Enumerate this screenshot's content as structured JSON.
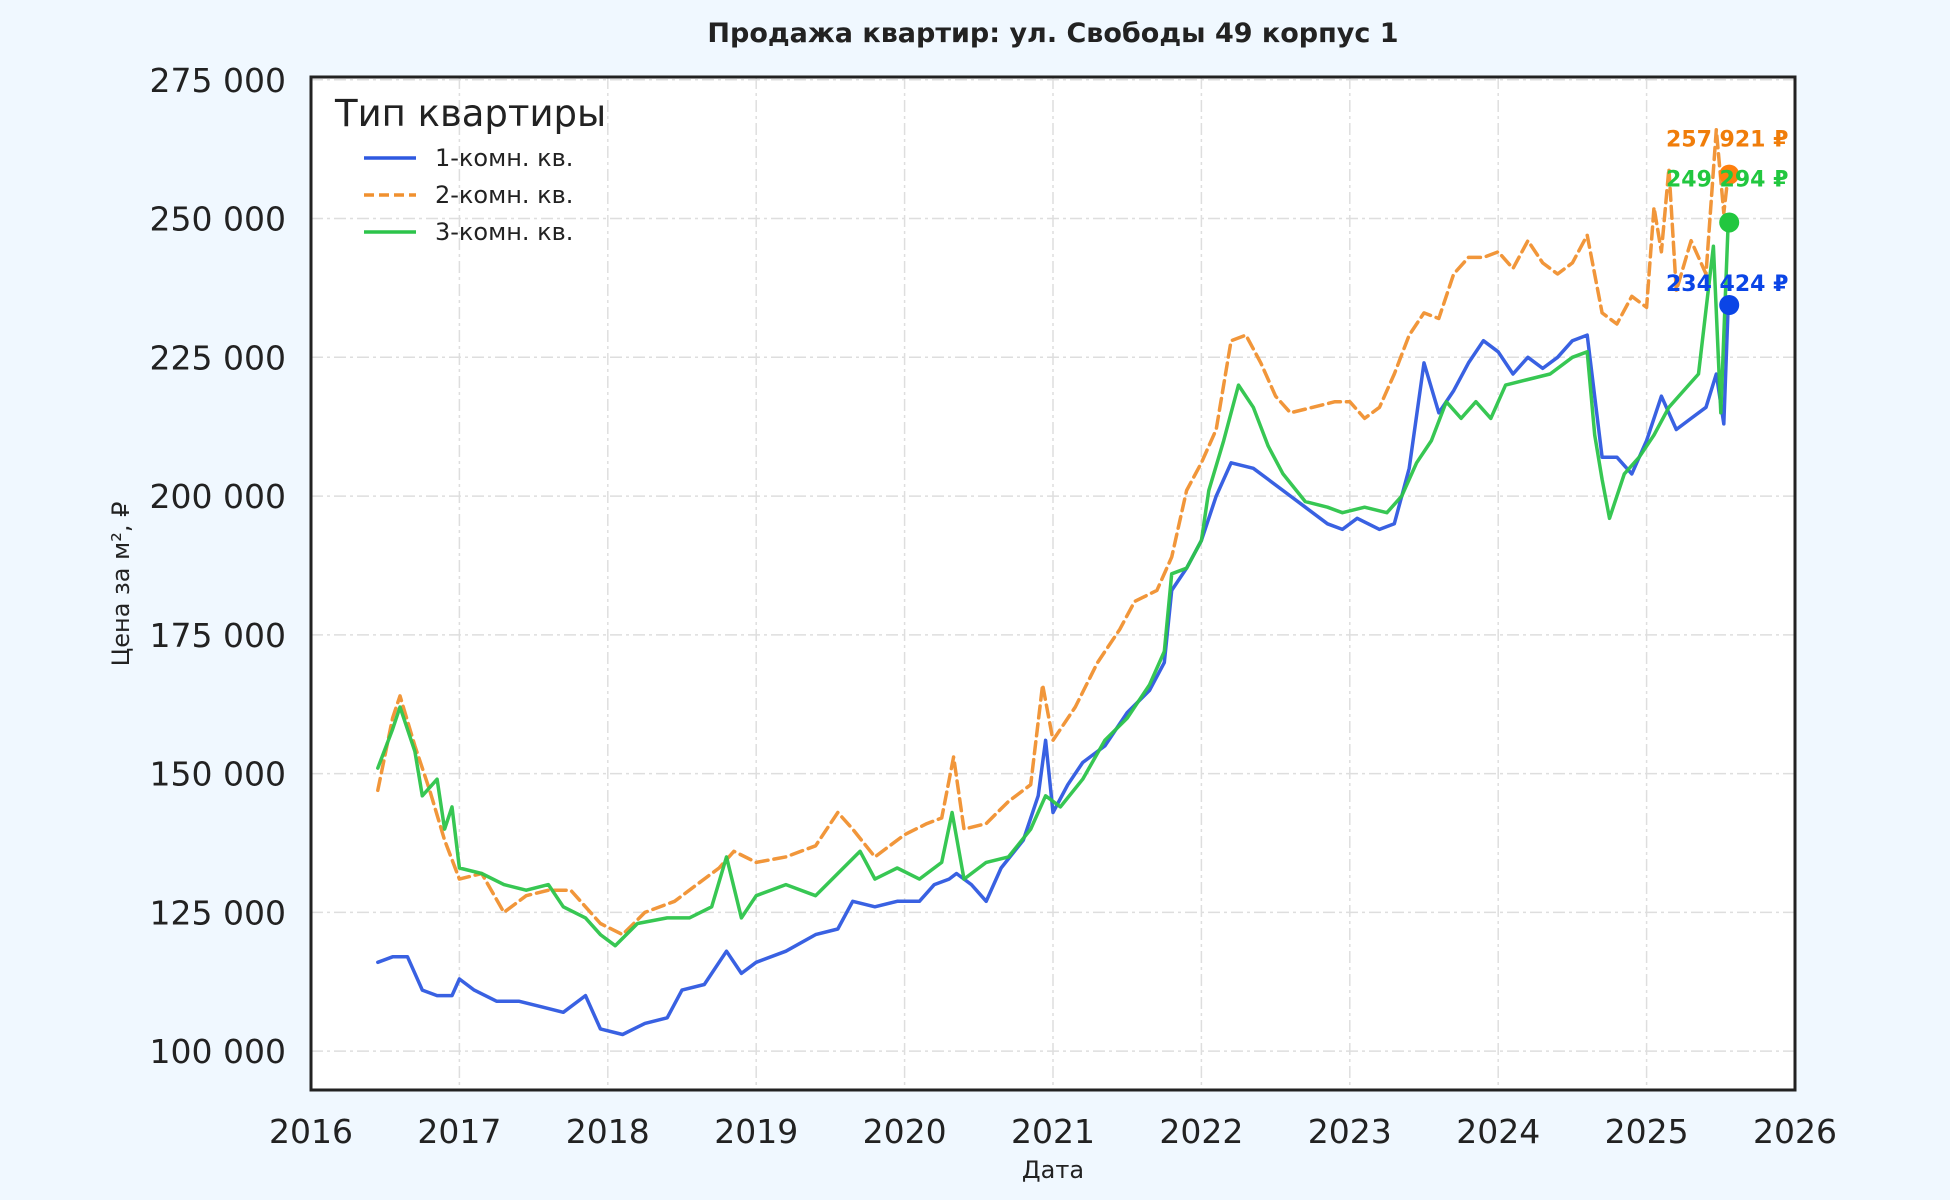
{
  "chart_data": {
    "type": "line",
    "title": "Продажа квартир: ул. Свободы 49 корпус 1",
    "xlabel": "Дата",
    "ylabel": "Цена за м², ₽",
    "xlim": [
      2016,
      2026
    ],
    "ylim": [
      93000,
      275500
    ],
    "x_ticks": [
      "2016",
      "2017",
      "2018",
      "2019",
      "2020",
      "2021",
      "2022",
      "2023",
      "2024",
      "2025",
      "2026"
    ],
    "y_ticks": [
      "100 000",
      "125 000",
      "150 000",
      "175 000",
      "200 000",
      "225 000",
      "250 000",
      "275 000"
    ],
    "grid": true,
    "legend": {
      "title": "Тип квартиры",
      "position": "top-left"
    },
    "series": [
      {
        "name": "1-комн. кв.",
        "color": "#2e59e0",
        "style": "solid",
        "end_label": "234 424 ₽",
        "end_marker_color": "#0b45e6",
        "label_color": "#0b45e6",
        "points": [
          [
            2016.45,
            116000
          ],
          [
            2016.55,
            117000
          ],
          [
            2016.65,
            117000
          ],
          [
            2016.75,
            111000
          ],
          [
            2016.85,
            110000
          ],
          [
            2016.95,
            110000
          ],
          [
            2017.0,
            113000
          ],
          [
            2017.1,
            111000
          ],
          [
            2017.25,
            109000
          ],
          [
            2017.4,
            109000
          ],
          [
            2017.55,
            108000
          ],
          [
            2017.7,
            107000
          ],
          [
            2017.85,
            110000
          ],
          [
            2017.95,
            104000
          ],
          [
            2018.1,
            103000
          ],
          [
            2018.25,
            105000
          ],
          [
            2018.4,
            106000
          ],
          [
            2018.5,
            111000
          ],
          [
            2018.65,
            112000
          ],
          [
            2018.8,
            118000
          ],
          [
            2018.9,
            114000
          ],
          [
            2019.0,
            116000
          ],
          [
            2019.2,
            118000
          ],
          [
            2019.4,
            121000
          ],
          [
            2019.55,
            122000
          ],
          [
            2019.65,
            127000
          ],
          [
            2019.8,
            126000
          ],
          [
            2019.95,
            127000
          ],
          [
            2020.1,
            127000
          ],
          [
            2020.2,
            130000
          ],
          [
            2020.3,
            131000
          ],
          [
            2020.35,
            132000
          ],
          [
            2020.45,
            130000
          ],
          [
            2020.55,
            127000
          ],
          [
            2020.65,
            133000
          ],
          [
            2020.8,
            138000
          ],
          [
            2020.9,
            146000
          ],
          [
            2020.95,
            156000
          ],
          [
            2021.0,
            143000
          ],
          [
            2021.1,
            148000
          ],
          [
            2021.2,
            152000
          ],
          [
            2021.35,
            155000
          ],
          [
            2021.5,
            161000
          ],
          [
            2021.65,
            165000
          ],
          [
            2021.75,
            170000
          ],
          [
            2021.8,
            183000
          ],
          [
            2021.9,
            187000
          ],
          [
            2022.0,
            192000
          ],
          [
            2022.1,
            200000
          ],
          [
            2022.2,
            206000
          ],
          [
            2022.35,
            205000
          ],
          [
            2022.45,
            203000
          ],
          [
            2022.55,
            201000
          ],
          [
            2022.7,
            198000
          ],
          [
            2022.85,
            195000
          ],
          [
            2022.95,
            194000
          ],
          [
            2023.05,
            196000
          ],
          [
            2023.2,
            194000
          ],
          [
            2023.3,
            195000
          ],
          [
            2023.4,
            205000
          ],
          [
            2023.5,
            224000
          ],
          [
            2023.6,
            215000
          ],
          [
            2023.7,
            219000
          ],
          [
            2023.8,
            224000
          ],
          [
            2023.9,
            228000
          ],
          [
            2024.0,
            226000
          ],
          [
            2024.1,
            222000
          ],
          [
            2024.2,
            225000
          ],
          [
            2024.3,
            223000
          ],
          [
            2024.4,
            225000
          ],
          [
            2024.5,
            228000
          ],
          [
            2024.6,
            229000
          ],
          [
            2024.7,
            207000
          ],
          [
            2024.8,
            207000
          ],
          [
            2024.9,
            204000
          ],
          [
            2025.0,
            210000
          ],
          [
            2025.1,
            218000
          ],
          [
            2025.2,
            212000
          ],
          [
            2025.3,
            214000
          ],
          [
            2025.4,
            216000
          ],
          [
            2025.47,
            222000
          ],
          [
            2025.52,
            213000
          ],
          [
            2025.55,
            234424
          ]
        ]
      },
      {
        "name": "2-комн. кв.",
        "color": "#f0902f",
        "style": "dashed",
        "end_label": "257 921 ₽",
        "end_marker_color": "#ff7f0e",
        "label_color": "#f07d0a",
        "points": [
          [
            2016.45,
            147000
          ],
          [
            2016.55,
            160000
          ],
          [
            2016.6,
            164000
          ],
          [
            2016.7,
            155000
          ],
          [
            2016.8,
            147000
          ],
          [
            2016.9,
            138000
          ],
          [
            2017.0,
            131000
          ],
          [
            2017.15,
            132000
          ],
          [
            2017.3,
            125000
          ],
          [
            2017.45,
            128000
          ],
          [
            2017.6,
            129000
          ],
          [
            2017.75,
            129000
          ],
          [
            2017.85,
            126000
          ],
          [
            2017.95,
            123000
          ],
          [
            2018.1,
            121000
          ],
          [
            2018.25,
            125000
          ],
          [
            2018.45,
            127000
          ],
          [
            2018.6,
            130000
          ],
          [
            2018.75,
            133000
          ],
          [
            2018.85,
            136000
          ],
          [
            2019.0,
            134000
          ],
          [
            2019.2,
            135000
          ],
          [
            2019.4,
            137000
          ],
          [
            2019.55,
            143000
          ],
          [
            2019.65,
            140000
          ],
          [
            2019.8,
            135000
          ],
          [
            2020.0,
            139000
          ],
          [
            2020.15,
            141000
          ],
          [
            2020.25,
            142000
          ],
          [
            2020.33,
            153000
          ],
          [
            2020.4,
            140000
          ],
          [
            2020.55,
            141000
          ],
          [
            2020.7,
            145000
          ],
          [
            2020.85,
            148000
          ],
          [
            2020.93,
            166000
          ],
          [
            2021.0,
            156000
          ],
          [
            2021.15,
            162000
          ],
          [
            2021.3,
            170000
          ],
          [
            2021.45,
            176000
          ],
          [
            2021.55,
            181000
          ],
          [
            2021.7,
            183000
          ],
          [
            2021.8,
            189000
          ],
          [
            2021.9,
            201000
          ],
          [
            2022.0,
            206000
          ],
          [
            2022.1,
            212000
          ],
          [
            2022.2,
            228000
          ],
          [
            2022.3,
            229000
          ],
          [
            2022.4,
            224000
          ],
          [
            2022.5,
            218000
          ],
          [
            2022.6,
            215000
          ],
          [
            2022.75,
            216000
          ],
          [
            2022.9,
            217000
          ],
          [
            2023.0,
            217000
          ],
          [
            2023.1,
            214000
          ],
          [
            2023.2,
            216000
          ],
          [
            2023.3,
            222000
          ],
          [
            2023.4,
            229000
          ],
          [
            2023.5,
            233000
          ],
          [
            2023.6,
            232000
          ],
          [
            2023.7,
            240000
          ],
          [
            2023.8,
            243000
          ],
          [
            2023.9,
            243000
          ],
          [
            2024.0,
            244000
          ],
          [
            2024.1,
            241000
          ],
          [
            2024.2,
            246000
          ],
          [
            2024.3,
            242000
          ],
          [
            2024.4,
            240000
          ],
          [
            2024.5,
            242000
          ],
          [
            2024.6,
            247000
          ],
          [
            2024.7,
            233000
          ],
          [
            2024.8,
            231000
          ],
          [
            2024.9,
            236000
          ],
          [
            2025.0,
            234000
          ],
          [
            2025.05,
            252000
          ],
          [
            2025.1,
            244000
          ],
          [
            2025.15,
            259000
          ],
          [
            2025.2,
            237000
          ],
          [
            2025.3,
            246000
          ],
          [
            2025.4,
            240000
          ],
          [
            2025.47,
            266000
          ],
          [
            2025.52,
            251000
          ],
          [
            2025.55,
            257921
          ]
        ]
      },
      {
        "name": "3-комн. кв.",
        "color": "#2cc44a",
        "style": "solid",
        "end_label": "249 294 ₽",
        "end_marker_color": "#22c73f",
        "label_color": "#22c73f",
        "points": [
          [
            2016.45,
            151000
          ],
          [
            2016.55,
            158000
          ],
          [
            2016.6,
            162000
          ],
          [
            2016.7,
            154000
          ],
          [
            2016.75,
            146000
          ],
          [
            2016.85,
            149000
          ],
          [
            2016.9,
            140000
          ],
          [
            2016.95,
            144000
          ],
          [
            2017.0,
            133000
          ],
          [
            2017.15,
            132000
          ],
          [
            2017.3,
            130000
          ],
          [
            2017.45,
            129000
          ],
          [
            2017.6,
            130000
          ],
          [
            2017.7,
            126000
          ],
          [
            2017.85,
            124000
          ],
          [
            2017.95,
            121000
          ],
          [
            2018.05,
            119000
          ],
          [
            2018.2,
            123000
          ],
          [
            2018.4,
            124000
          ],
          [
            2018.55,
            124000
          ],
          [
            2018.7,
            126000
          ],
          [
            2018.8,
            135000
          ],
          [
            2018.9,
            124000
          ],
          [
            2019.0,
            128000
          ],
          [
            2019.2,
            130000
          ],
          [
            2019.4,
            128000
          ],
          [
            2019.55,
            132000
          ],
          [
            2019.7,
            136000
          ],
          [
            2019.8,
            131000
          ],
          [
            2019.95,
            133000
          ],
          [
            2020.1,
            131000
          ],
          [
            2020.25,
            134000
          ],
          [
            2020.32,
            143000
          ],
          [
            2020.4,
            131000
          ],
          [
            2020.55,
            134000
          ],
          [
            2020.7,
            135000
          ],
          [
            2020.85,
            140000
          ],
          [
            2020.95,
            146000
          ],
          [
            2021.05,
            144000
          ],
          [
            2021.2,
            149000
          ],
          [
            2021.35,
            156000
          ],
          [
            2021.5,
            160000
          ],
          [
            2021.65,
            166000
          ],
          [
            2021.75,
            172000
          ],
          [
            2021.8,
            186000
          ],
          [
            2021.9,
            187000
          ],
          [
            2022.0,
            192000
          ],
          [
            2022.05,
            201000
          ],
          [
            2022.15,
            210000
          ],
          [
            2022.25,
            220000
          ],
          [
            2022.35,
            216000
          ],
          [
            2022.45,
            209000
          ],
          [
            2022.55,
            204000
          ],
          [
            2022.7,
            199000
          ],
          [
            2022.85,
            198000
          ],
          [
            2022.95,
            197000
          ],
          [
            2023.1,
            198000
          ],
          [
            2023.25,
            197000
          ],
          [
            2023.35,
            200000
          ],
          [
            2023.45,
            206000
          ],
          [
            2023.55,
            210000
          ],
          [
            2023.65,
            217000
          ],
          [
            2023.75,
            214000
          ],
          [
            2023.85,
            217000
          ],
          [
            2023.95,
            214000
          ],
          [
            2024.05,
            220000
          ],
          [
            2024.2,
            221000
          ],
          [
            2024.35,
            222000
          ],
          [
            2024.5,
            225000
          ],
          [
            2024.6,
            226000
          ],
          [
            2024.65,
            211000
          ],
          [
            2024.7,
            203000
          ],
          [
            2024.75,
            196000
          ],
          [
            2024.85,
            204000
          ],
          [
            2024.95,
            207000
          ],
          [
            2025.05,
            211000
          ],
          [
            2025.15,
            216000
          ],
          [
            2025.25,
            219000
          ],
          [
            2025.35,
            222000
          ],
          [
            2025.45,
            245000
          ],
          [
            2025.5,
            215000
          ],
          [
            2025.55,
            249294
          ]
        ]
      }
    ]
  }
}
